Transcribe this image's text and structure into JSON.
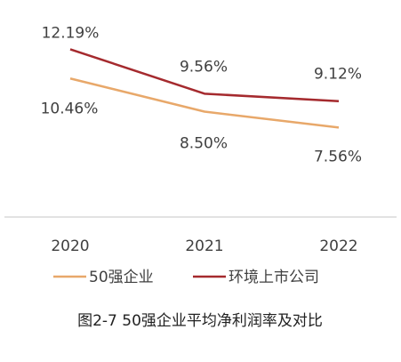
{
  "chart_data": {
    "type": "line",
    "categories": [
      "2020",
      "2021",
      "2022"
    ],
    "series": [
      {
        "name": "50强企业",
        "values": [
          10.46,
          8.5,
          7.56
        ],
        "value_labels": [
          "10.46%",
          "8.50%",
          "7.56%"
        ],
        "color": "#E8A86A"
      },
      {
        "name": "环境上市公司",
        "values": [
          12.19,
          9.56,
          9.12
        ],
        "value_labels": [
          "12.19%",
          "9.56%",
          "9.12%"
        ],
        "color": "#A52A2E"
      }
    ],
    "title": "图2-7 50强企业平均净利润率及对比",
    "xlabel": "",
    "ylabel": "",
    "ylim": [
      5,
      13
    ],
    "grid": false,
    "legend": "bottom"
  },
  "colors": {
    "axis_line": "#D9D9D9",
    "text": "#404040"
  }
}
